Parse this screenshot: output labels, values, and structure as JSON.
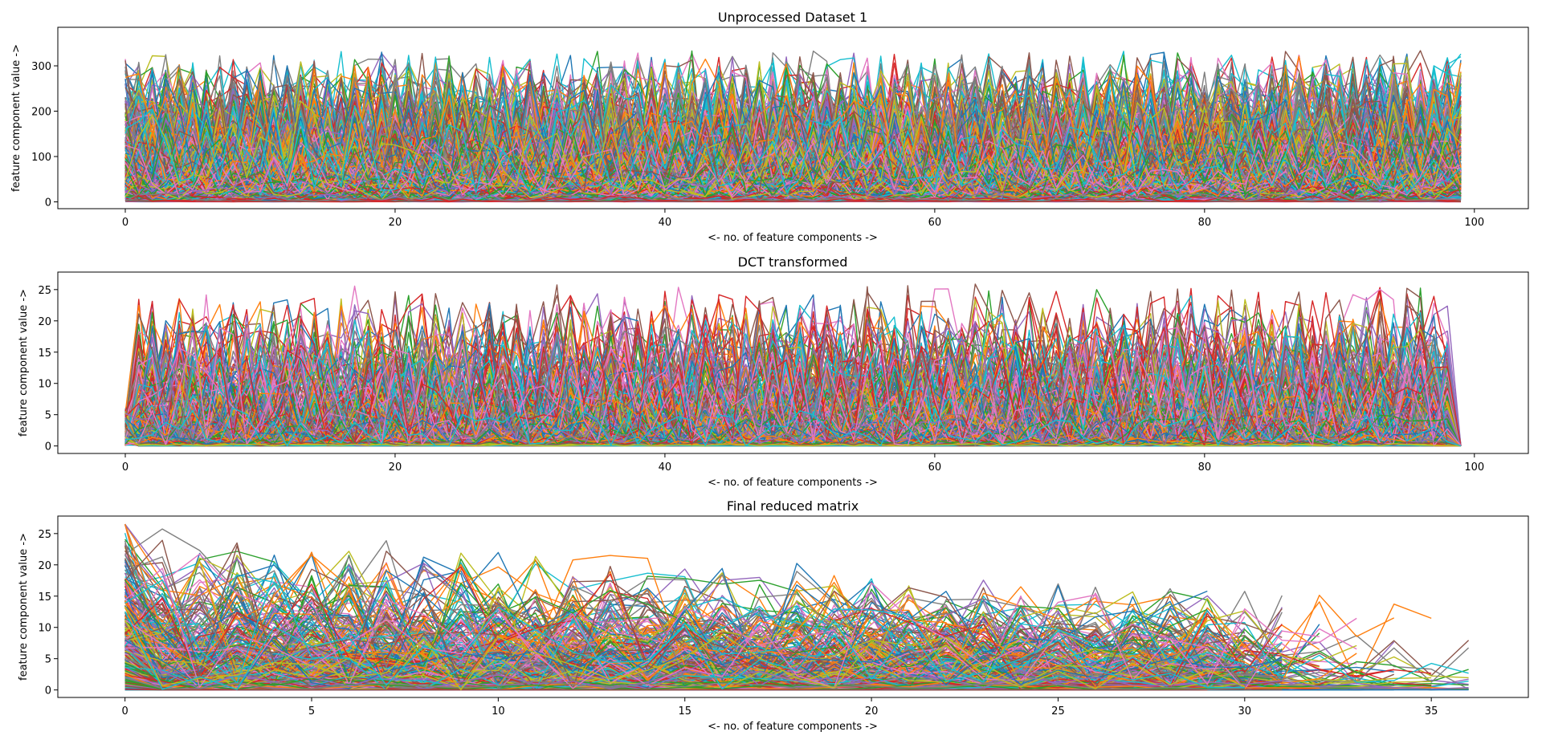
{
  "palette": [
    "#1f77b4",
    "#ff7f0e",
    "#2ca02c",
    "#d62728",
    "#9467bd",
    "#8c564b",
    "#e377c2",
    "#7f7f7f",
    "#bcbd22",
    "#17becf"
  ],
  "chart_data": [
    {
      "type": "line",
      "title": "Unprocessed Dataset 1",
      "xlabel": "<- no. of feature components ->",
      "ylabel": "feature component value ->",
      "xlim": [
        -5,
        104
      ],
      "ylim": [
        -15,
        385
      ],
      "xticks": [
        0,
        20,
        40,
        60,
        80,
        100
      ],
      "yticks": [
        0,
        100,
        200,
        300
      ],
      "n_points": 100,
      "n_series_approx": 400,
      "value_range": [
        0,
        365
      ],
      "grid": false,
      "legend": false
    },
    {
      "type": "line",
      "title": "DCT transformed",
      "xlabel": "<- no. of feature components ->",
      "ylabel": "feature component value ->",
      "xlim": [
        -5,
        104
      ],
      "ylim": [
        -1.2,
        27.8
      ],
      "xticks": [
        0,
        20,
        40,
        60,
        80,
        100
      ],
      "yticks": [
        0,
        5,
        10,
        15,
        20,
        25
      ],
      "n_points": 100,
      "n_series_approx": 400,
      "value_range": [
        0,
        26.5
      ],
      "grid": false,
      "legend": false
    },
    {
      "type": "line",
      "title": "Final reduced matrix",
      "xlabel": "<- no. of feature components ->",
      "ylabel": "feature component value ->",
      "xlim": [
        -1.8,
        37.6
      ],
      "ylim": [
        -1.2,
        27.8
      ],
      "xticks": [
        0,
        5,
        10,
        15,
        20,
        25,
        30,
        35
      ],
      "yticks": [
        0,
        5,
        10,
        15,
        20,
        25
      ],
      "n_points_range": [
        30,
        37
      ],
      "n_series_approx": 400,
      "value_range": [
        0,
        26.5
      ],
      "grid": false,
      "legend": false
    }
  ]
}
